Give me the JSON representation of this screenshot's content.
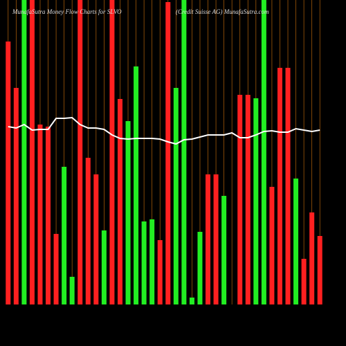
{
  "chart_data": {
    "type": "bar",
    "title": "MunafaSutra Money Flow Charts for SLVO",
    "subtitle": "(Credit Suisse AG) MunafaSutra.com",
    "values": [
      380,
      313,
      440,
      440,
      260,
      257,
      102,
      199,
      40,
      440,
      212,
      188,
      107,
      440,
      297,
      265,
      344,
      120,
      123,
      93,
      437,
      313,
      440,
      10,
      105,
      188,
      188,
      157,
      0,
      303,
      303,
      298,
      440,
      170,
      342,
      342,
      182,
      66,
      133,
      99
    ],
    "colors": [
      "#ff2020",
      "#ff2020",
      "#22ee22",
      "#ff2020",
      "#ff2020",
      "#ff2020",
      "#ff2020",
      "#22ee22",
      "#22ee22",
      "#ff2020",
      "#ff2020",
      "#ff2020",
      "#22ee22",
      "#ff2020",
      "#ff2020",
      "#22ee22",
      "#22ee22",
      "#22ee22",
      "#22ee22",
      "#ff2020",
      "#ff2020",
      "#22ee22",
      "#22ee22",
      "#22ee22",
      "#22ee22",
      "#ff2020",
      "#ff2020",
      "#22ee22",
      "#22ee22",
      "#ff2020",
      "#ff2020",
      "#22ee22",
      "#22ee22",
      "#ff2020",
      "#ff2020",
      "#ff2020",
      "#22ee22",
      "#ff2020",
      "#ff2020",
      "#ff2020"
    ],
    "line": {
      "color": "#ffffff",
      "values": [
        257,
        255,
        260,
        252,
        253,
        253,
        269,
        269,
        270,
        260,
        255,
        255,
        253,
        245,
        240,
        239,
        240,
        240,
        240,
        239,
        235,
        232,
        238,
        239,
        242,
        245,
        245,
        245,
        248,
        241,
        241,
        245,
        250,
        251,
        249,
        249,
        254,
        252,
        250,
        252
      ]
    },
    "ylim": [
      0,
      440
    ],
    "grid": true,
    "grid_color": "#b8650a"
  }
}
